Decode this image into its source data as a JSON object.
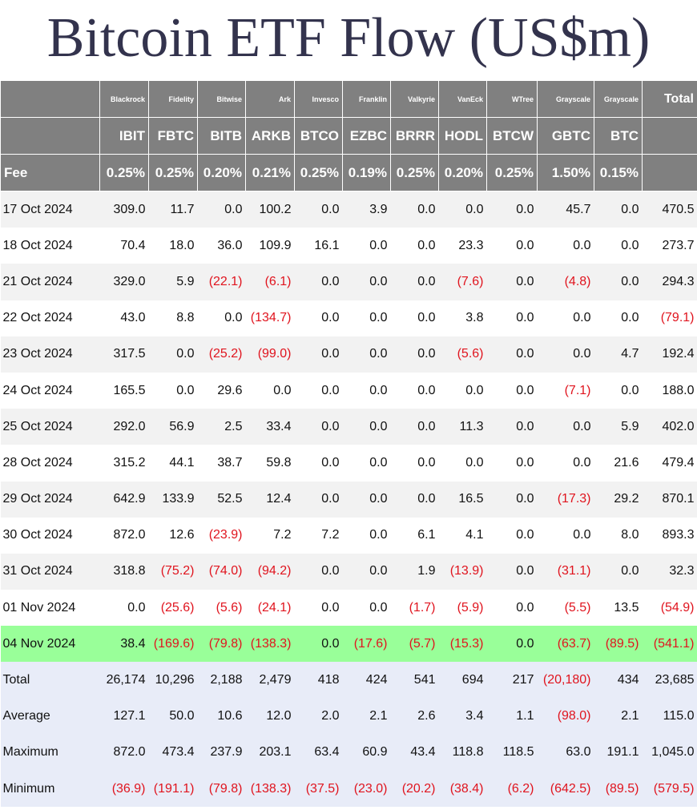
{
  "title": "Bitcoin ETF Flow (US$m)",
  "colors": {
    "header_bg": "#808080",
    "highlight_row": "#99ff99",
    "stats_bg": "#e8ecf8",
    "negative": "#e0141e",
    "title": "#33334d"
  },
  "header": {
    "issuers": [
      "Blackrock",
      "Fidelity",
      "Bitwise",
      "Ark",
      "Invesco",
      "Franklin",
      "Valkyrie",
      "VanEck",
      "WTree",
      "Grayscale",
      "Grayscale"
    ],
    "total_label": "Total",
    "tickers": [
      "IBIT",
      "FBTC",
      "BITB",
      "ARKB",
      "BTCO",
      "EZBC",
      "BRRR",
      "HODL",
      "BTCW",
      "GBTC",
      "BTC"
    ],
    "fee_label": "Fee",
    "fees": [
      "0.25%",
      "0.25%",
      "0.20%",
      "0.21%",
      "0.25%",
      "0.19%",
      "0.25%",
      "0.20%",
      "0.25%",
      "1.50%",
      "0.15%"
    ]
  },
  "rows": [
    {
      "date": "17 Oct 2024",
      "values": [
        "309.0",
        "11.7",
        "0.0",
        "100.2",
        "0.0",
        "3.9",
        "0.0",
        "0.0",
        "0.0",
        "45.7",
        "0.0",
        "470.5"
      ]
    },
    {
      "date": "18 Oct 2024",
      "values": [
        "70.4",
        "18.0",
        "36.0",
        "109.9",
        "16.1",
        "0.0",
        "0.0",
        "23.3",
        "0.0",
        "0.0",
        "0.0",
        "273.7"
      ]
    },
    {
      "date": "21 Oct 2024",
      "values": [
        "329.0",
        "5.9",
        "(22.1)",
        "(6.1)",
        "0.0",
        "0.0",
        "0.0",
        "(7.6)",
        "0.0",
        "(4.8)",
        "0.0",
        "294.3"
      ]
    },
    {
      "date": "22 Oct 2024",
      "values": [
        "43.0",
        "8.8",
        "0.0",
        "(134.7)",
        "0.0",
        "0.0",
        "0.0",
        "3.8",
        "0.0",
        "0.0",
        "0.0",
        "(79.1)"
      ]
    },
    {
      "date": "23 Oct 2024",
      "values": [
        "317.5",
        "0.0",
        "(25.2)",
        "(99.0)",
        "0.0",
        "0.0",
        "0.0",
        "(5.6)",
        "0.0",
        "0.0",
        "4.7",
        "192.4"
      ]
    },
    {
      "date": "24 Oct 2024",
      "values": [
        "165.5",
        "0.0",
        "29.6",
        "0.0",
        "0.0",
        "0.0",
        "0.0",
        "0.0",
        "0.0",
        "(7.1)",
        "0.0",
        "188.0"
      ]
    },
    {
      "date": "25 Oct 2024",
      "values": [
        "292.0",
        "56.9",
        "2.5",
        "33.4",
        "0.0",
        "0.0",
        "0.0",
        "11.3",
        "0.0",
        "0.0",
        "5.9",
        "402.0"
      ]
    },
    {
      "date": "28 Oct 2024",
      "values": [
        "315.2",
        "44.1",
        "38.7",
        "59.8",
        "0.0",
        "0.0",
        "0.0",
        "0.0",
        "0.0",
        "0.0",
        "21.6",
        "479.4"
      ]
    },
    {
      "date": "29 Oct 2024",
      "values": [
        "642.9",
        "133.9",
        "52.5",
        "12.4",
        "0.0",
        "0.0",
        "0.0",
        "16.5",
        "0.0",
        "(17.3)",
        "29.2",
        "870.1"
      ]
    },
    {
      "date": "30 Oct 2024",
      "values": [
        "872.0",
        "12.6",
        "(23.9)",
        "7.2",
        "7.2",
        "0.0",
        "6.1",
        "4.1",
        "0.0",
        "0.0",
        "8.0",
        "893.3"
      ]
    },
    {
      "date": "31 Oct 2024",
      "values": [
        "318.8",
        "(75.2)",
        "(74.0)",
        "(94.2)",
        "0.0",
        "0.0",
        "1.9",
        "(13.9)",
        "0.0",
        "(31.1)",
        "0.0",
        "32.3"
      ]
    },
    {
      "date": "01 Nov 2024",
      "values": [
        "0.0",
        "(25.6)",
        "(5.6)",
        "(24.1)",
        "0.0",
        "0.0",
        "(1.7)",
        "(5.9)",
        "0.0",
        "(5.5)",
        "13.5",
        "(54.9)"
      ]
    },
    {
      "date": "04 Nov 2024",
      "highlight": true,
      "values": [
        "38.4",
        "(169.6)",
        "(79.8)",
        "(138.3)",
        "0.0",
        "(17.6)",
        "(5.7)",
        "(15.3)",
        "0.0",
        "(63.7)",
        "(89.5)",
        "(541.1)"
      ]
    }
  ],
  "stats": [
    {
      "label": "Total",
      "values": [
        "26,174",
        "10,296",
        "2,188",
        "2,479",
        "418",
        "424",
        "541",
        "694",
        "217",
        "(20,180)",
        "434",
        "23,685"
      ]
    },
    {
      "label": "Average",
      "values": [
        "127.1",
        "50.0",
        "10.6",
        "12.0",
        "2.0",
        "2.1",
        "2.6",
        "3.4",
        "1.1",
        "(98.0)",
        "2.1",
        "115.0"
      ]
    },
    {
      "label": "Maximum",
      "values": [
        "872.0",
        "473.4",
        "237.9",
        "203.1",
        "63.4",
        "60.9",
        "43.4",
        "118.8",
        "118.5",
        "63.0",
        "191.1",
        "1,045.0"
      ]
    },
    {
      "label": "Minimum",
      "values": [
        "(36.9)",
        "(191.1)",
        "(79.8)",
        "(138.3)",
        "(37.5)",
        "(23.0)",
        "(20.2)",
        "(38.4)",
        "(6.2)",
        "(642.5)",
        "(89.5)",
        "(579.5)"
      ]
    }
  ]
}
